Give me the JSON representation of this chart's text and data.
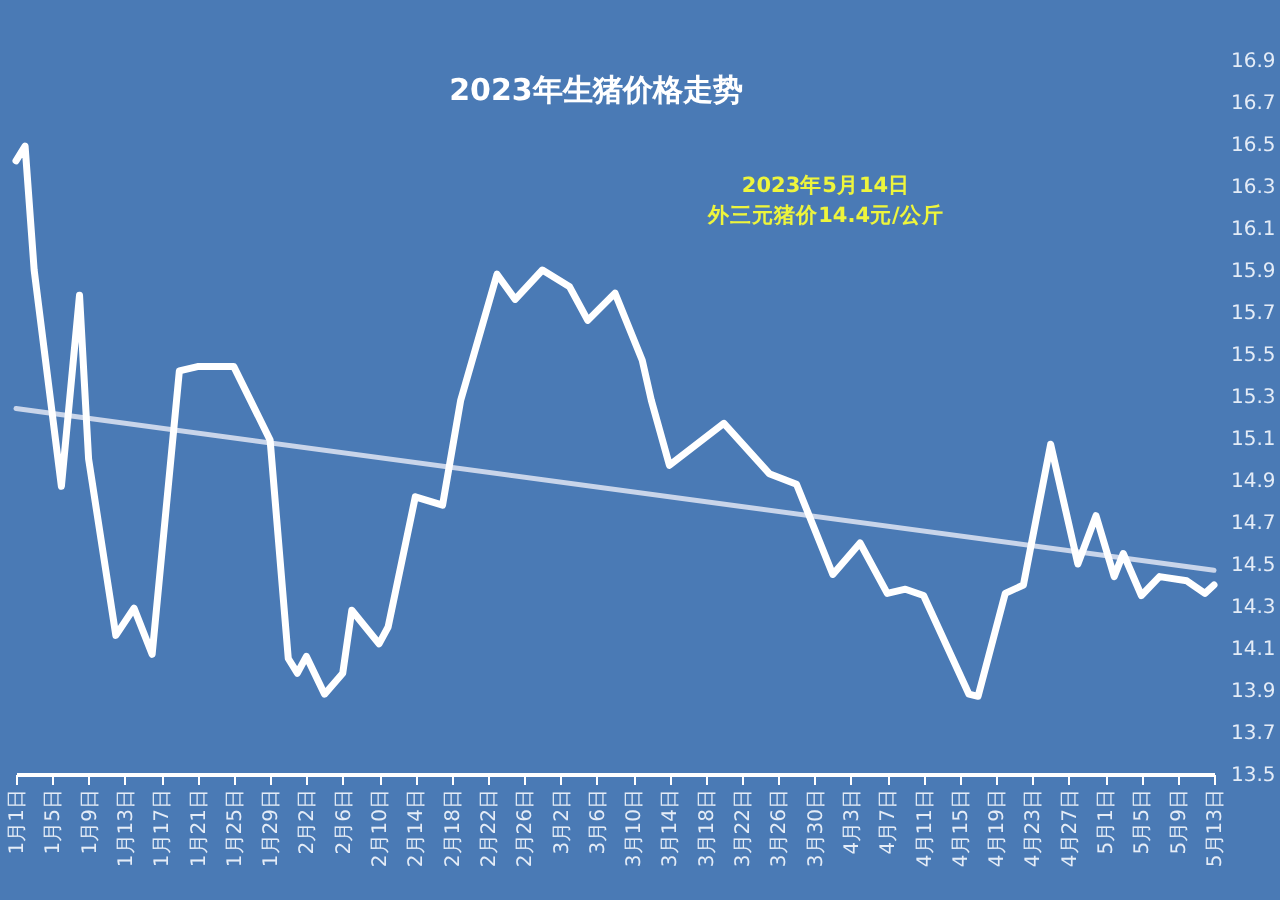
{
  "chart_data": {
    "type": "line",
    "title": "2023年生猪价格走势",
    "annotations": [
      "2023年5月14日",
      "外三元猪价14.4元/公斤"
    ],
    "xlim": [
      "2023-01-01",
      "2023-05-13"
    ],
    "xticks": [
      {
        "value": "2023-01-01",
        "label": "1月1日"
      },
      {
        "value": "2023-01-05",
        "label": "1月5日"
      },
      {
        "value": "2023-01-09",
        "label": "1月9日"
      },
      {
        "value": "2023-01-13",
        "label": "1月13日"
      },
      {
        "value": "2023-01-17",
        "label": "1月17日"
      },
      {
        "value": "2023-01-21",
        "label": "1月21日"
      },
      {
        "value": "2023-01-25",
        "label": "1月25日"
      },
      {
        "value": "2023-01-29",
        "label": "1月29日"
      },
      {
        "value": "2023-02-02",
        "label": "2月2日"
      },
      {
        "value": "2023-02-06",
        "label": "2月6日"
      },
      {
        "value": "2023-02-10",
        "label": "2月10日"
      },
      {
        "value": "2023-02-14",
        "label": "2月14日"
      },
      {
        "value": "2023-02-18",
        "label": "2月18日"
      },
      {
        "value": "2023-02-22",
        "label": "2月22日"
      },
      {
        "value": "2023-02-26",
        "label": "2月26日"
      },
      {
        "value": "2023-03-02",
        "label": "3月2日"
      },
      {
        "value": "2023-03-06",
        "label": "3月6日"
      },
      {
        "value": "2023-03-10",
        "label": "3月10日"
      },
      {
        "value": "2023-03-14",
        "label": "3月14日"
      },
      {
        "value": "2023-03-18",
        "label": "3月18日"
      },
      {
        "value": "2023-03-22",
        "label": "3月22日"
      },
      {
        "value": "2023-03-26",
        "label": "3月26日"
      },
      {
        "value": "2023-03-30",
        "label": "3月30日"
      },
      {
        "value": "2023-04-03",
        "label": "4月3日"
      },
      {
        "value": "2023-04-07",
        "label": "4月7日"
      },
      {
        "value": "2023-04-11",
        "label": "4月11日"
      },
      {
        "value": "2023-04-15",
        "label": "4月15日"
      },
      {
        "value": "2023-04-19",
        "label": "4月19日"
      },
      {
        "value": "2023-04-23",
        "label": "4月23日"
      },
      {
        "value": "2023-04-27",
        "label": "4月27日"
      },
      {
        "value": "2023-05-01",
        "label": "5月1日"
      },
      {
        "value": "2023-05-05",
        "label": "5月5日"
      },
      {
        "value": "2023-05-09",
        "label": "5月9日"
      },
      {
        "value": "2023-05-13",
        "label": "5月13日"
      }
    ],
    "ylim": [
      13.5,
      16.9
    ],
    "yticks": [
      13.5,
      13.7,
      13.9,
      14.1,
      14.3,
      14.5,
      14.7,
      14.9,
      15.1,
      15.3,
      15.5,
      15.7,
      15.9,
      16.1,
      16.3,
      16.5,
      16.7,
      16.9
    ],
    "grid": false,
    "marker": "none",
    "series": [
      {
        "color": "#ffffff",
        "x": [
          "2023-01-01",
          "2023-01-02",
          "2023-01-03",
          "2023-01-06",
          "2023-01-08",
          "2023-01-09",
          "2023-01-12",
          "2023-01-14",
          "2023-01-16",
          "2023-01-19",
          "2023-01-21",
          "2023-01-25",
          "2023-01-29",
          "2023-01-31",
          "2023-02-01",
          "2023-02-02",
          "2023-02-04",
          "2023-02-06",
          "2023-02-07",
          "2023-02-10",
          "2023-02-11",
          "2023-02-14",
          "2023-02-17",
          "2023-02-19",
          "2023-02-23",
          "2023-02-25",
          "2023-02-28",
          "2023-03-03",
          "2023-03-05",
          "2023-03-08",
          "2023-03-11",
          "2023-03-12",
          "2023-03-14",
          "2023-03-20",
          "2023-03-25",
          "2023-03-28",
          "2023-04-01",
          "2023-04-04",
          "2023-04-07",
          "2023-04-09",
          "2023-04-11",
          "2023-04-16",
          "2023-04-17",
          "2023-04-20",
          "2023-04-22",
          "2023-04-25",
          "2023-04-28",
          "2023-04-30",
          "2023-05-02",
          "2023-05-03",
          "2023-05-05",
          "2023-05-07",
          "2023-05-10",
          "2023-05-12",
          "2023-05-13"
        ],
        "values": [
          16.42,
          16.49,
          15.9,
          14.87,
          15.78,
          15.0,
          14.16,
          14.29,
          14.07,
          15.42,
          15.44,
          15.44,
          15.09,
          14.05,
          13.98,
          14.06,
          13.88,
          13.98,
          14.28,
          14.12,
          14.2,
          14.82,
          14.78,
          15.28,
          15.88,
          15.76,
          15.9,
          15.82,
          15.66,
          15.79,
          15.47,
          15.28,
          14.97,
          15.17,
          14.93,
          14.88,
          14.45,
          14.6,
          14.36,
          14.38,
          14.35,
          13.88,
          13.87,
          14.36,
          14.4,
          15.07,
          14.5,
          14.73,
          14.44,
          14.55,
          14.35,
          14.44,
          14.42,
          14.36,
          14.4
        ]
      },
      {
        "type": "line",
        "color": "#c9d5ea",
        "x": [
          "2023-01-01",
          "2023-05-13"
        ],
        "values": [
          15.24,
          14.47
        ]
      }
    ]
  }
}
